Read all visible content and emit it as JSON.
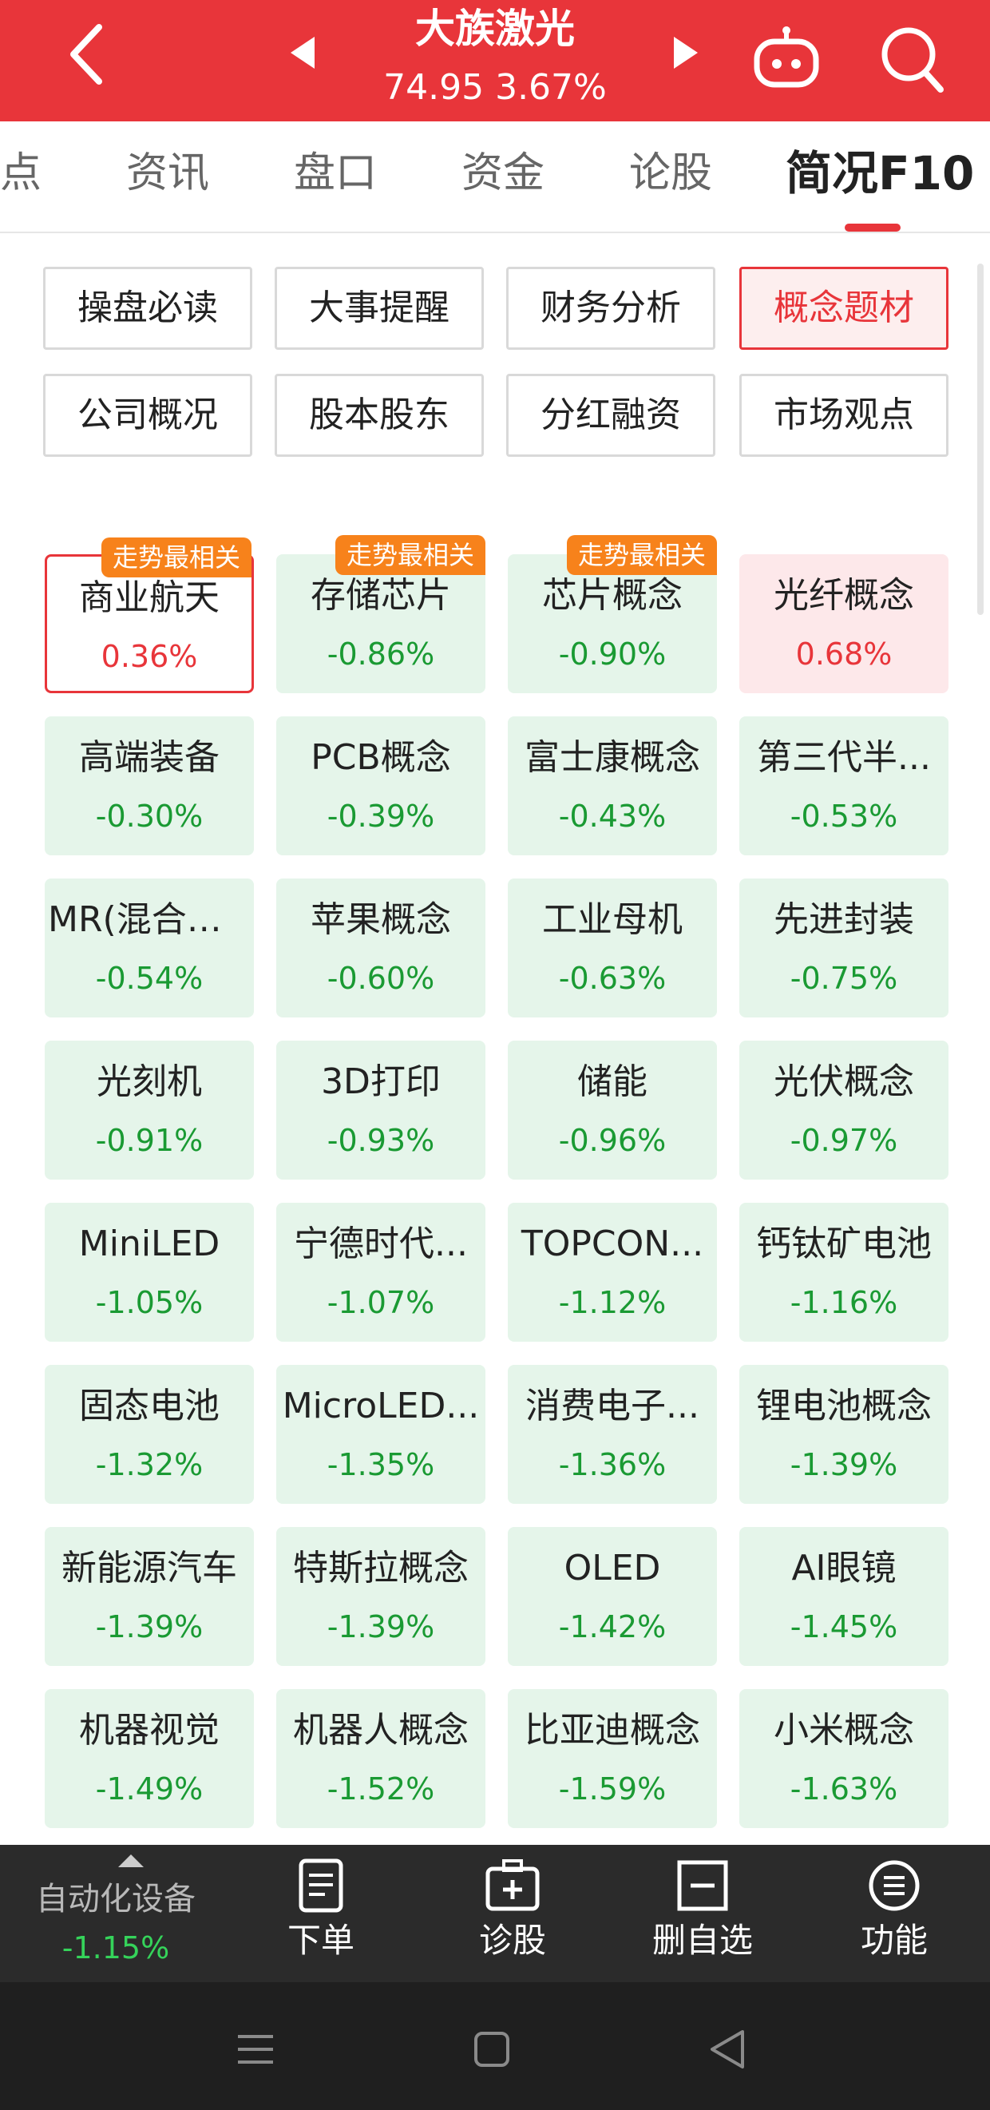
{
  "header": {
    "stock_name": "大族激光",
    "price_line": "74.95 3.67%",
    "icons": {
      "back": "chevron-left-icon",
      "prev": "triangle-left-icon",
      "next": "triangle-right-icon",
      "robot": "robot-icon",
      "search": "search-icon"
    }
  },
  "tabs": [
    {
      "label": "点"
    },
    {
      "label": "资讯"
    },
    {
      "label": "盘口"
    },
    {
      "label": "资金"
    },
    {
      "label": "论股"
    },
    {
      "label": "简况F10",
      "active": true
    }
  ],
  "sub_buttons": [
    {
      "label": "操盘必读"
    },
    {
      "label": "大事提醒"
    },
    {
      "label": "财务分析"
    },
    {
      "label": "概念题材",
      "active": true
    },
    {
      "label": "公司概况"
    },
    {
      "label": "股本股东"
    },
    {
      "label": "分红融资"
    },
    {
      "label": "市场观点"
    }
  ],
  "concepts": [
    {
      "name": "商业航天",
      "pct": "0.36%",
      "trend": "up",
      "badge": "走势最相关",
      "selected": true
    },
    {
      "name": "存储芯片",
      "pct": "-0.86%",
      "trend": "down",
      "badge": "走势最相关"
    },
    {
      "name": "芯片概念",
      "pct": "-0.90%",
      "trend": "down",
      "badge": "走势最相关"
    },
    {
      "name": "光纤概念",
      "pct": "0.68%",
      "trend": "up"
    },
    {
      "name": "高端装备",
      "pct": "-0.30%",
      "trend": "down"
    },
    {
      "name": "PCB概念",
      "pct": "-0.39%",
      "trend": "down"
    },
    {
      "name": "富士康概念",
      "pct": "-0.43%",
      "trend": "down"
    },
    {
      "name": "第三代半...",
      "pct": "-0.53%",
      "trend": "down"
    },
    {
      "name": "MR(混合现...",
      "pct": "-0.54%",
      "trend": "down"
    },
    {
      "name": "苹果概念",
      "pct": "-0.60%",
      "trend": "down"
    },
    {
      "name": "工业母机",
      "pct": "-0.63%",
      "trend": "down"
    },
    {
      "name": "先进封装",
      "pct": "-0.75%",
      "trend": "down"
    },
    {
      "name": "光刻机",
      "pct": "-0.91%",
      "trend": "down"
    },
    {
      "name": "3D打印",
      "pct": "-0.93%",
      "trend": "down"
    },
    {
      "name": "储能",
      "pct": "-0.96%",
      "trend": "down"
    },
    {
      "name": "光伏概念",
      "pct": "-0.97%",
      "trend": "down"
    },
    {
      "name": "MiniLED",
      "pct": "-1.05%",
      "trend": "down"
    },
    {
      "name": "宁德时代...",
      "pct": "-1.07%",
      "trend": "down"
    },
    {
      "name": "TOPCON...",
      "pct": "-1.12%",
      "trend": "down"
    },
    {
      "name": "钙钛矿电池",
      "pct": "-1.16%",
      "trend": "down"
    },
    {
      "name": "固态电池",
      "pct": "-1.32%",
      "trend": "down"
    },
    {
      "name": "MicroLED...",
      "pct": "-1.35%",
      "trend": "down"
    },
    {
      "name": "消费电子...",
      "pct": "-1.36%",
      "trend": "down"
    },
    {
      "name": "锂电池概念",
      "pct": "-1.39%",
      "trend": "down"
    },
    {
      "name": "新能源汽车",
      "pct": "-1.39%",
      "trend": "down"
    },
    {
      "name": "特斯拉概念",
      "pct": "-1.39%",
      "trend": "down"
    },
    {
      "name": "OLED",
      "pct": "-1.42%",
      "trend": "down"
    },
    {
      "name": "AI眼镜",
      "pct": "-1.45%",
      "trend": "down"
    },
    {
      "name": "机器视觉",
      "pct": "-1.49%",
      "trend": "down"
    },
    {
      "name": "机器人概念",
      "pct": "-1.52%",
      "trend": "down"
    },
    {
      "name": "比亚迪概念",
      "pct": "-1.59%",
      "trend": "down"
    },
    {
      "name": "小米概念",
      "pct": "-1.63%",
      "trend": "down"
    }
  ],
  "toolbar": {
    "index_name": "自动化设备",
    "index_pct": "-1.15%",
    "items": [
      {
        "label": "下单",
        "icon": "document-icon"
      },
      {
        "label": "诊股",
        "icon": "medical-kit-icon"
      },
      {
        "label": "删自选",
        "icon": "minus-box-icon"
      },
      {
        "label": "功能",
        "icon": "menu-circle-icon"
      }
    ]
  },
  "colors": {
    "brand_red": "#e8353a",
    "up_red": "#e8353a",
    "down_green": "#1a9a33",
    "badge_orange": "#f7821b"
  }
}
